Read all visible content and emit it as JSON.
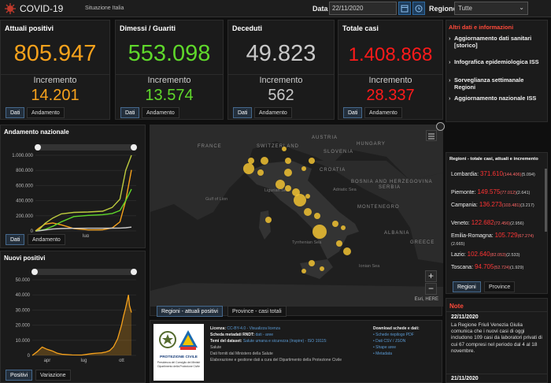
{
  "header": {
    "title": "COVID-19",
    "subtitle": "Situazione Italia",
    "date_label": "Data",
    "date_value": "22/11/2020",
    "region_label": "Regione",
    "region_value": "Tutte",
    "calendar_icon": "calendar-icon",
    "clock_icon": "clock-icon"
  },
  "kpis": [
    {
      "title": "Attuali positivi",
      "value": "805.947",
      "inc_label": "Incremento",
      "inc": "14.201",
      "color": "#f7a21c"
    },
    {
      "title": "Dimessi / Guariti",
      "value": "553.098",
      "inc_label": "Incremento",
      "inc": "13.574",
      "color": "#5fd82b"
    },
    {
      "title": "Deceduti",
      "value": "49.823",
      "inc_label": "Incremento",
      "inc": "562",
      "color": "#c8c8c8"
    },
    {
      "title": "Totale casi",
      "value": "1.408.868",
      "inc_label": "Incremento",
      "inc": "28.337",
      "color": "#ff1a1a"
    }
  ],
  "kpi_tabs": {
    "dati": "Dati",
    "andamento": "Andamento"
  },
  "links": {
    "title": "Altri dati e informazioni",
    "items": [
      "Aggiornamento dati sanitari [storico]",
      "Infografica epidemiologica ISS",
      "Sorveglianza settimanale Regioni",
      "Aggiornamento nazionale ISS"
    ]
  },
  "national": {
    "title": "Andamento nazionale",
    "chart_data": {
      "type": "line",
      "title": "Andamento nazionale",
      "categories_label": "lug",
      "yticks": [
        "1.000.000",
        "800.000",
        "600.000",
        "400.000",
        "200.000",
        "0"
      ],
      "ylim": [
        0,
        1000000
      ],
      "series": [
        {
          "color": "#f7a21c",
          "x": [
            0,
            0.04,
            0.1,
            0.18,
            0.27,
            0.4,
            0.55,
            0.7,
            0.8,
            0.88,
            0.94,
            1
          ],
          "y": [
            0,
            40000,
            90000,
            105000,
            80000,
            30000,
            14000,
            15000,
            40000,
            120000,
            400000,
            805947
          ]
        },
        {
          "color": "#5fd82b",
          "x": [
            0,
            0.04,
            0.1,
            0.18,
            0.27,
            0.4,
            0.55,
            0.7,
            0.8,
            0.88,
            0.94,
            1
          ],
          "y": [
            0,
            3000,
            20000,
            60000,
            120000,
            190000,
            205000,
            215000,
            230000,
            270000,
            400000,
            553098
          ]
        },
        {
          "color": "#cccccc",
          "x": [
            0,
            0.04,
            0.1,
            0.18,
            0.27,
            0.4,
            0.55,
            0.7,
            0.8,
            0.88,
            0.94,
            1
          ],
          "y": [
            0,
            2000,
            12000,
            25000,
            31000,
            34000,
            35000,
            35500,
            36000,
            38000,
            42000,
            49823
          ]
        },
        {
          "color": "#bdcb3f",
          "x": [
            0,
            0.04,
            0.1,
            0.18,
            0.27,
            0.4,
            0.55,
            0.7,
            0.8,
            0.88,
            0.94,
            1
          ],
          "y": [
            0,
            20000,
            100000,
            170000,
            225000,
            245000,
            250000,
            260000,
            310000,
            420000,
            800000,
            1000000
          ]
        }
      ]
    },
    "tabs": [
      "Dati",
      "Andamento"
    ]
  },
  "newpos": {
    "title": "Nuovi positivi",
    "chart_data": {
      "type": "area",
      "title": "Nuovi positivi",
      "xticks": [
        "apr",
        "lug",
        "ott"
      ],
      "yticks": [
        "50.000",
        "40.000",
        "30.000",
        "20.000",
        "10.000",
        "0"
      ],
      "ylim": [
        0,
        50000
      ],
      "x": [
        0,
        0.05,
        0.1,
        0.15,
        0.2,
        0.25,
        0.3,
        0.4,
        0.5,
        0.6,
        0.65,
        0.7,
        0.74,
        0.78,
        0.82,
        0.86,
        0.9,
        0.92,
        0.94,
        0.96,
        0.97,
        0.98,
        1
      ],
      "y": [
        0,
        2500,
        5500,
        4000,
        3000,
        1500,
        800,
        300,
        250,
        1200,
        1500,
        1700,
        2200,
        3200,
        5800,
        11000,
        20000,
        26000,
        31000,
        37000,
        40000,
        33000,
        28337
      ],
      "color": "#f7a21c"
    },
    "tabs": [
      "Positivi",
      "Variazione"
    ]
  },
  "map": {
    "tabs": [
      "Regioni - attuali positivi",
      "Province - casi totali"
    ],
    "countries": [
      "FRANCE",
      "SWITZERLAND",
      "AUSTRIA",
      "HUNGARY",
      "SLOVENIA",
      "CROATIA",
      "BOSNIA AND HERZEGOVINA",
      "SERBIA",
      "MONTENEGRO",
      "ALBANIA",
      "GREECE"
    ],
    "seas": [
      "Gulf of Lion",
      "Ligurian Sea",
      "Adriatic Sea",
      "Tyrrhenian Sea",
      "Ionian Sea"
    ],
    "attribution": "Esri, HERE",
    "zoom_in": "+",
    "zoom_out": "−"
  },
  "regions": {
    "title": "Regioni - totale casi, attuali e incremento",
    "tabs": [
      "Regioni",
      "Province"
    ],
    "rows": [
      {
        "name": "Lombardia:",
        "total": "371.610",
        "attuali": "(144.406)",
        "inc": "(5.094)"
      },
      {
        "name": "Piemonte:",
        "total": "149.575",
        "attuali": "(77.012)",
        "inc": "(2.641)"
      },
      {
        "name": "Campania:",
        "total": "136.273",
        "attuali": "(103.481)",
        "inc": "(3.217)"
      },
      {
        "name": "Veneto:",
        "total": "122.682",
        "attuali": "(72.456)",
        "inc": "(2.956)"
      },
      {
        "name": "Emilia-Romagna:",
        "total": "105.729",
        "attuali": "(67.274)",
        "inc": "(2.665)"
      },
      {
        "name": "Lazio:",
        "total": "102.640",
        "attuali": "(82.053)",
        "inc": "(2.533)"
      },
      {
        "name": "Toscana:",
        "total": "94.705",
        "attuali": "(52.724)",
        "inc": "(1.929)"
      }
    ]
  },
  "note": {
    "title": "Note",
    "items": [
      {
        "date": "22/11/2020",
        "text": "La Regione Friuli Venezia Giulia comunica che i nuovi casi di oggi includono 109 casi da laboratori privati di cui 67 compresi nel periodo dal 4 al 18 novembre."
      },
      {
        "date": "21/11/2020",
        "text": ""
      }
    ]
  },
  "footer": {
    "brand": "PROTEZIONE CIVILE",
    "brand_sub": "Presidenza del Consiglio dei Ministri Dipartimento della Protezione Civile",
    "licenza_label": "Licenza:",
    "licenza": "CC-BY-4.0 - Visualizza licenza",
    "scheda_label": "Scheda metadati RNDT:",
    "scheda": "dati - aree",
    "temi_label": "Temi del dataset:",
    "temi": "Salute umana e sicurezza (Inspire) - ISO 19115:",
    "temi2": "Salute",
    "fonte": "Dati forniti dal Ministero della Salute",
    "elab": "Elaborazione e gestione dati a cura del Dipartimento della Protezione Civile",
    "download_title": "Download schede e dati:",
    "downloads": [
      "Schede riepilogo PDF",
      "Dati CSV / JSON",
      "Shape aree",
      "Metadata"
    ]
  }
}
